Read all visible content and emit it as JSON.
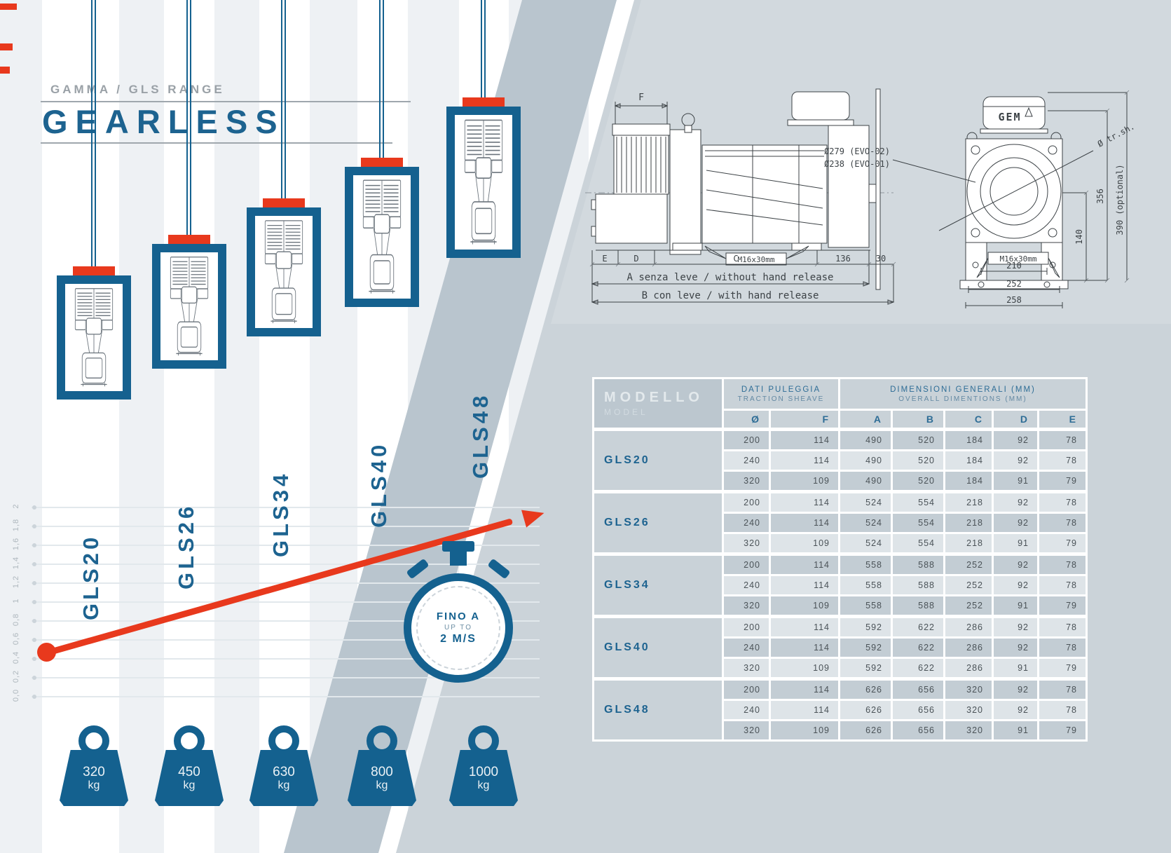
{
  "page": {
    "title_small": "GAMMA / GLS RANGE",
    "title_big": "GEARLESS"
  },
  "colors": {
    "accent_red": "#e8391d",
    "brand_blue": "#15618f",
    "label_blue": "#1d6390",
    "page_gray": "#cbd3d9"
  },
  "chart_data": {
    "type": "line",
    "title": "GLS range capacity progression",
    "models": [
      "GLS20",
      "GLS26",
      "GLS34",
      "GLS40",
      "GLS48"
    ],
    "capacities_kg": [
      320,
      450,
      630,
      800,
      1000
    ],
    "weight_unit": "kg",
    "y_axis_ticks": [
      "0,0",
      "0,2",
      "0,4",
      "0,6",
      "0,8",
      "1",
      "1,2",
      "1,4",
      "1,6",
      "1,8",
      "2"
    ],
    "speed_badge": {
      "line1": "FINO A",
      "line2": "UP TO",
      "line3": "2 M/S"
    },
    "legend_position": "none",
    "grid": true
  },
  "side_view": {
    "dim_f": "F",
    "dim_e": "E",
    "dim_d": "D",
    "dim_c": "C",
    "dim_136": "136",
    "dim_30": "30",
    "bolt_label": "M16x30mm",
    "row_a": "A senza leve / without hand release",
    "row_b": "B con leve / with hand release"
  },
  "front_view": {
    "logo": "GEM",
    "diam_evo2": "Ø279 (EVO-02)",
    "diam_evo1": "Ø238 (EVO-01)",
    "diam_sheave": "Ø tr.sh.",
    "dim_356": "356",
    "dim_390": "390 (optional)",
    "dim_140": "140",
    "bolt_label": "M16x30mm",
    "dim_210": "210",
    "dim_252": "252",
    "dim_258": "258"
  },
  "table": {
    "header": {
      "model_it": "MODELLO",
      "model_en": "MODEL",
      "sheave_it": "DATI PULEGGIA",
      "sheave_en": "TRACTION SHEAVE",
      "dims_it": "DIMENSIONI GENERALI (MM)",
      "dims_en": "OVERALL DIMENTIONS (MM)",
      "cols": [
        "Ø",
        "F",
        "A",
        "B",
        "C",
        "D",
        "E"
      ]
    },
    "groups": [
      {
        "model": "GLS20",
        "rows": [
          [
            200,
            114,
            490,
            520,
            184,
            92,
            78
          ],
          [
            240,
            114,
            490,
            520,
            184,
            92,
            78
          ],
          [
            320,
            109,
            490,
            520,
            184,
            91,
            79
          ]
        ]
      },
      {
        "model": "GLS26",
        "rows": [
          [
            200,
            114,
            524,
            554,
            218,
            92,
            78
          ],
          [
            240,
            114,
            524,
            554,
            218,
            92,
            78
          ],
          [
            320,
            109,
            524,
            554,
            218,
            91,
            79
          ]
        ]
      },
      {
        "model": "GLS34",
        "rows": [
          [
            200,
            114,
            558,
            588,
            252,
            92,
            78
          ],
          [
            240,
            114,
            558,
            588,
            252,
            92,
            78
          ],
          [
            320,
            109,
            558,
            588,
            252,
            91,
            79
          ]
        ]
      },
      {
        "model": "GLS40",
        "rows": [
          [
            200,
            114,
            592,
            622,
            286,
            92,
            78
          ],
          [
            240,
            114,
            592,
            622,
            286,
            92,
            78
          ],
          [
            320,
            109,
            592,
            622,
            286,
            91,
            79
          ]
        ]
      },
      {
        "model": "GLS48",
        "rows": [
          [
            200,
            114,
            626,
            656,
            320,
            92,
            78
          ],
          [
            240,
            114,
            626,
            656,
            320,
            92,
            78
          ],
          [
            320,
            109,
            626,
            656,
            320,
            91,
            79
          ]
        ]
      }
    ]
  }
}
